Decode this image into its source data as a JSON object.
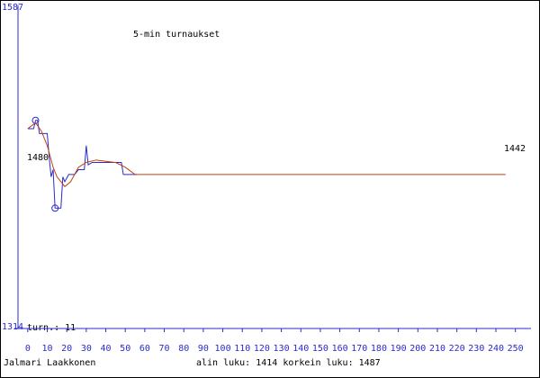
{
  "chart_data": {
    "type": "line",
    "title": "5-min turnaukset",
    "xlim": [
      -5,
      258
    ],
    "xticks": [
      0,
      10,
      20,
      30,
      40,
      50,
      60,
      70,
      80,
      90,
      100,
      110,
      120,
      130,
      140,
      150,
      160,
      170,
      180,
      190,
      200,
      210,
      220,
      230,
      240,
      250
    ],
    "ylim": [
      1314,
      1587
    ],
    "yticks": [
      1314,
      1587
    ],
    "start_label": "1480",
    "end_label": "1442",
    "count_label": "turn.: 11",
    "author": "Jalmari Laakkonen",
    "summary": "alin luku: 1414  korkein luku: 1487",
    "axis_color": "#2a2ad0",
    "series": [
      {
        "color": "#2a2ad0",
        "x": [
          0,
          3,
          4,
          5,
          6,
          10,
          11,
          12,
          13,
          14,
          17,
          18,
          19,
          21,
          24,
          26,
          29,
          30,
          31,
          33,
          48,
          49,
          56
        ],
        "values": [
          1480,
          1480,
          1487,
          1487,
          1476,
          1476,
          1456,
          1440,
          1446,
          1414,
          1414,
          1440,
          1436,
          1442,
          1442,
          1446,
          1446,
          1466,
          1450,
          1452,
          1452,
          1442,
          1442
        ]
      },
      {
        "color": "#c04010",
        "x": [
          0,
          4,
          7,
          10,
          13,
          15,
          19,
          22,
          26,
          30,
          35,
          45,
          50,
          55,
          245
        ],
        "values": [
          1480,
          1485,
          1478,
          1466,
          1448,
          1440,
          1432,
          1436,
          1448,
          1452,
          1454,
          1452,
          1448,
          1442,
          1442
        ]
      }
    ]
  }
}
